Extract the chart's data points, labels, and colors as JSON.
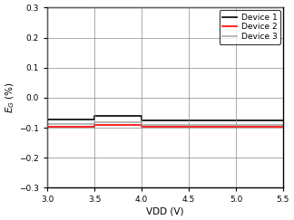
{
  "title": "",
  "xlabel": "VDD (V)",
  "ylabel_display": "$E_G$ (%)",
  "xlim": [
    3,
    5.5
  ],
  "ylim": [
    -0.3,
    0.3
  ],
  "xticks": [
    3,
    3.5,
    4,
    4.5,
    5,
    5.5
  ],
  "yticks": [
    -0.3,
    -0.2,
    -0.1,
    0,
    0.1,
    0.2,
    0.3
  ],
  "device1": {
    "x": [
      3.0,
      3.5,
      3.5,
      4.0,
      4.0,
      5.5
    ],
    "y": [
      -0.072,
      -0.072,
      -0.06,
      -0.06,
      -0.075,
      -0.075
    ],
    "color": "#000000",
    "lw": 1.2,
    "label": "Device 1"
  },
  "device2": {
    "x": [
      3.0,
      3.5,
      3.5,
      4.0,
      4.0,
      5.5
    ],
    "y": [
      -0.096,
      -0.096,
      -0.092,
      -0.092,
      -0.096,
      -0.096
    ],
    "color": "#ff0000",
    "lw": 1.2,
    "label": "Device 2"
  },
  "device3": {
    "x": [
      3.0,
      3.5,
      3.5,
      4.0,
      4.0,
      5.5
    ],
    "y": [
      -0.088,
      -0.088,
      -0.083,
      -0.083,
      -0.09,
      -0.09
    ],
    "color": "#aaaaaa",
    "lw": 1.2,
    "label": "Device 3"
  },
  "legend_loc": "upper right",
  "grid": true,
  "background_color": "#ffffff",
  "tick_fontsize": 6.5,
  "label_fontsize": 7.5,
  "legend_fontsize": 6.5
}
